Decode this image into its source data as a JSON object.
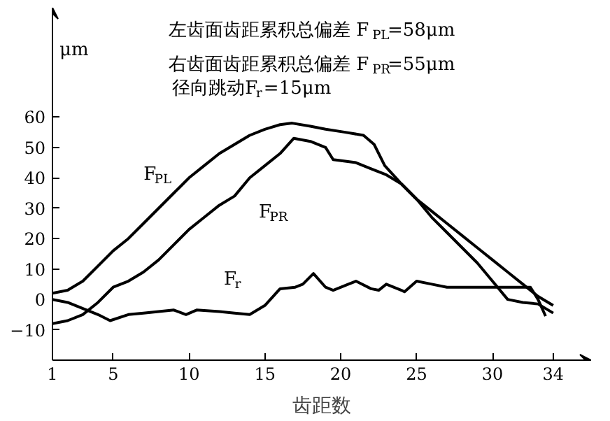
{
  "chart_data": {
    "type": "line",
    "xlabel": "齿距数",
    "ylabel": "μm",
    "annotations": [
      "左齿面齿距累积总偏差 F$_{PL}$=58μm",
      "右齿面齿距累积总偏差 F$_{PR}$=55μm",
      "径向跳动F$_{r}$=15μm"
    ],
    "series": [
      {
        "name": "F$_{PL}$",
        "color": "#000000",
        "x": [
          1,
          2,
          3,
          4,
          5,
          6,
          7,
          8,
          9,
          10,
          11,
          12,
          13,
          14,
          15,
          16,
          16.8,
          18,
          19,
          20.3,
          21.5,
          22.2,
          22.9,
          24,
          25,
          26,
          27,
          28,
          29,
          30,
          31,
          32,
          33,
          34
        ],
        "values": [
          2,
          3,
          6,
          11,
          16,
          20,
          25,
          30,
          35,
          40,
          44,
          48,
          51,
          54,
          56,
          57.5,
          58,
          57,
          56,
          55,
          54,
          51,
          44,
          38,
          33,
          27,
          22,
          17,
          12,
          6,
          0,
          -1,
          -1.5,
          -4.5
        ]
      },
      {
        "name": "F$_{PR}$",
        "color": "#000000",
        "x": [
          1,
          2,
          3,
          4,
          5,
          6,
          7,
          8,
          9,
          10,
          11,
          12,
          13,
          14,
          15,
          16,
          16.9,
          18,
          19,
          19.5,
          21,
          22,
          23,
          24,
          25,
          26,
          27,
          28,
          29,
          30,
          31,
          32,
          33,
          34
        ],
        "values": [
          -8,
          -7,
          -5,
          -1,
          4,
          6,
          9,
          13,
          18,
          23,
          27,
          31,
          34,
          40,
          44,
          48,
          53,
          52,
          50,
          46,
          45,
          43,
          41,
          38,
          33,
          29,
          25,
          21,
          17,
          13,
          9,
          5,
          1,
          -2
        ]
      },
      {
        "name": "F$_{r}$",
        "color": "#000000",
        "x": [
          1,
          2,
          3,
          4,
          4.8,
          6,
          7,
          8,
          9,
          9.8,
          10.5,
          12,
          13,
          14,
          15,
          16,
          17,
          17.5,
          18.2,
          19,
          19.5,
          20.5,
          21,
          22,
          22.5,
          23,
          24,
          24.2,
          25,
          26,
          27,
          28,
          30,
          31,
          32,
          32.5,
          33,
          33.5
        ],
        "values": [
          0,
          -1,
          -3,
          -5,
          -7,
          -5,
          -4.5,
          -4,
          -3.5,
          -5,
          -3.5,
          -4,
          -4.5,
          -5,
          -2,
          3.5,
          4,
          5,
          8.5,
          4,
          3,
          5,
          6,
          3.5,
          3,
          5,
          3,
          2.5,
          6,
          5,
          4,
          4,
          4,
          4,
          4,
          4,
          0,
          -5.5
        ]
      }
    ],
    "xlim": [
      1,
      36.5
    ],
    "xticks": [
      1,
      5,
      10,
      15,
      20,
      25,
      30,
      34
    ],
    "ylim": [
      -20,
      96
    ],
    "yticks": [
      -10,
      0,
      10,
      20,
      30,
      40,
      50,
      60
    ],
    "grid": false,
    "marker": "none",
    "line_style": "solid"
  }
}
